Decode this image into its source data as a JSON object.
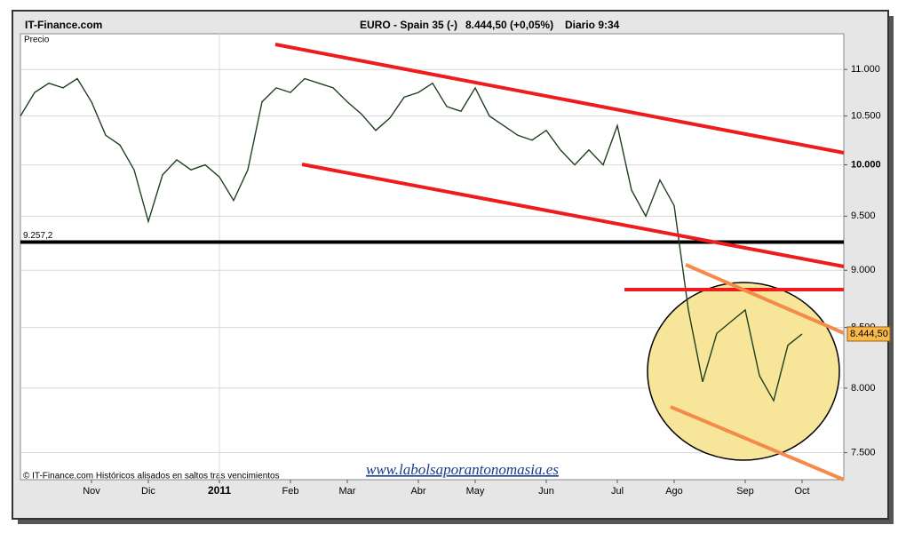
{
  "chart_data": {
    "type": "line",
    "title": "IT-Finance.com",
    "instrument": "EURO - Spain 35 (-)",
    "quote": "8.444,50 (+0,05%)",
    "period": "Diario  9:34",
    "y_label": "Precio",
    "footnote": "© IT-Finance.com Históricos alisados en saltos tras vencimientos",
    "watermark": "www.labolsaporantonomasia.es",
    "log_scale": true,
    "grid": true,
    "color": "#1f3f1f",
    "categories": [
      null,
      null,
      null,
      null,
      null,
      "Nov",
      null,
      null,
      null,
      "Dic",
      null,
      null,
      null,
      null,
      "2011",
      null,
      null,
      null,
      null,
      "Feb",
      null,
      null,
      null,
      "Mar",
      null,
      null,
      null,
      null,
      "Abr",
      null,
      null,
      null,
      "May",
      null,
      null,
      null,
      null,
      "Jun",
      null,
      null,
      null,
      null,
      "Jul",
      null,
      null,
      null,
      "Ago",
      null,
      null,
      null,
      null,
      "Sep",
      null,
      null,
      null,
      "Oct"
    ],
    "values": [
      10500,
      10750,
      10850,
      10800,
      10900,
      10650,
      10300,
      10200,
      9950,
      9450,
      9900,
      10050,
      9950,
      10000,
      9880,
      9650,
      9950,
      10650,
      10800,
      10750,
      10900,
      10850,
      10800,
      10650,
      10520,
      10350,
      10480,
      10700,
      10750,
      10850,
      10600,
      10550,
      10800,
      10500,
      10400,
      10300,
      10250,
      10350,
      10150,
      10000,
      10150,
      10000,
      10400,
      9750,
      9500,
      9850,
      9600,
      8650,
      8050,
      8450,
      8550,
      8650,
      8100,
      7900,
      8350,
      8444.5
    ],
    "ylim": [
      7300,
      11400
    ],
    "yticks": [
      {
        "value": 7500,
        "label": "7.500"
      },
      {
        "value": 8000,
        "label": "8.000"
      },
      {
        "value": 8500,
        "label": "8.500"
      },
      {
        "value": 9000,
        "label": "9.000"
      },
      {
        "value": 9500,
        "label": "9.500"
      },
      {
        "value": 10000,
        "label": "10.000"
      },
      {
        "value": 10500,
        "label": "10.500"
      },
      {
        "value": 11000,
        "label": "11.000"
      }
    ],
    "reference_line": {
      "value": 9257.2,
      "label": "9.257,2"
    },
    "last_value": {
      "value": 8444.5,
      "label": "8.444,50"
    }
  }
}
